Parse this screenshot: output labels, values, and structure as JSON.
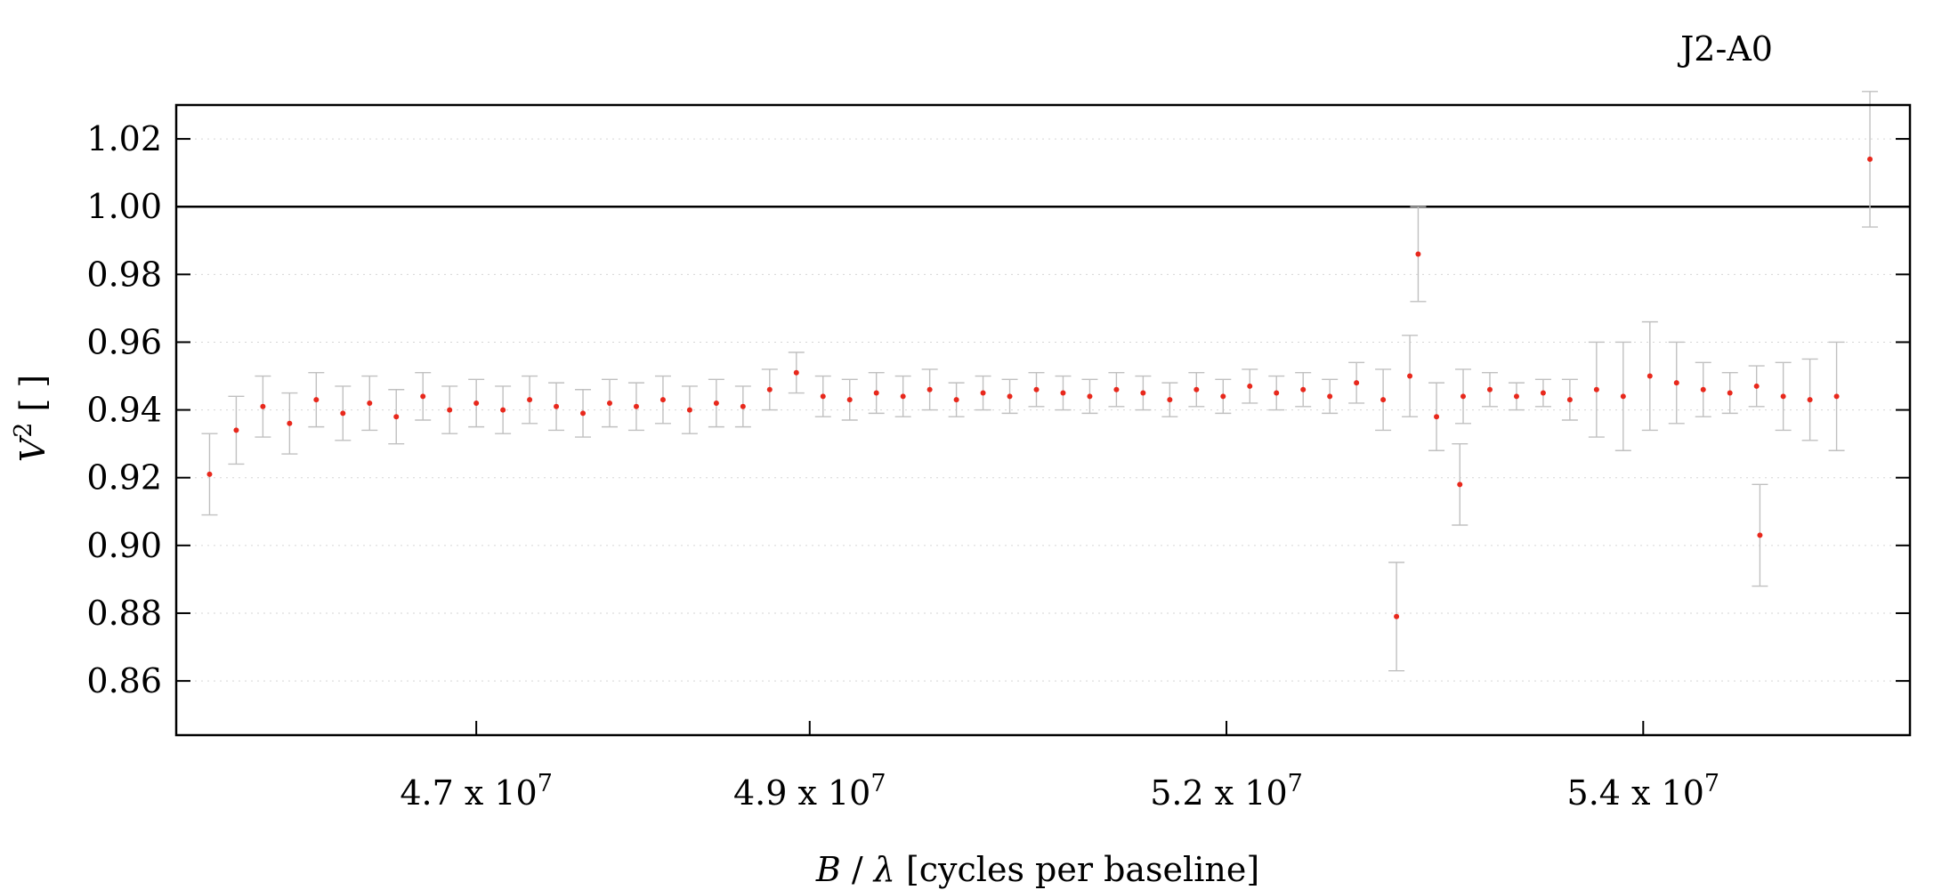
{
  "chart_data": {
    "type": "scatter",
    "title": "J2-A0",
    "xlabel": "B / λ [cycles per baseline]",
    "ylabel": "V² [ ]",
    "xlim": [
      45200000,
      55600000
    ],
    "ylim": [
      0.844,
      1.03
    ],
    "x_ticks": [
      {
        "value": 47000000,
        "mantissa": "4.7",
        "times": " x 10",
        "exponent": "7"
      },
      {
        "value": 49000000,
        "mantissa": "4.9",
        "times": " x 10",
        "exponent": "7"
      },
      {
        "value": 51500000,
        "mantissa": "5.2",
        "times": " x 10",
        "exponent": "7"
      },
      {
        "value": 54000000,
        "mantissa": "5.4",
        "times": " x 10",
        "exponent": "7"
      }
    ],
    "y_ticks": [
      "1.02",
      "1.00",
      "0.98",
      "0.96",
      "0.94",
      "0.92",
      "0.90",
      "0.88",
      "0.86"
    ],
    "reference_line": 1.0,
    "grid": true,
    "series": [
      {
        "marker_color": "#e8281c",
        "errorbar_color": "#c0c0c0",
        "x": [
          45400000,
          45560000,
          45720000,
          45880000,
          46040000,
          46200000,
          46360000,
          46520000,
          46680000,
          46840000,
          47000000,
          47160000,
          47320000,
          47480000,
          47640000,
          47800000,
          47960000,
          48120000,
          48280000,
          48440000,
          48600000,
          48760000,
          48920000,
          49080000,
          49240000,
          49400000,
          49560000,
          49720000,
          49880000,
          50040000,
          50200000,
          50360000,
          50520000,
          50680000,
          50840000,
          51000000,
          51160000,
          51320000,
          51480000,
          51640000,
          51800000,
          51960000,
          52120000,
          52280000,
          52440000,
          52600000,
          52760000,
          52920000,
          53080000,
          53240000,
          53400000,
          53560000,
          53720000,
          53880000,
          54040000,
          54200000,
          54360000,
          54520000,
          54680000,
          54840000,
          55000000,
          55160000,
          55360000,
          52520000,
          52650000,
          52900000,
          54700000
        ],
        "y": [
          0.921,
          0.934,
          0.941,
          0.936,
          0.943,
          0.939,
          0.942,
          0.938,
          0.944,
          0.94,
          0.942,
          0.94,
          0.943,
          0.941,
          0.939,
          0.942,
          0.941,
          0.943,
          0.94,
          0.942,
          0.941,
          0.946,
          0.951,
          0.944,
          0.943,
          0.945,
          0.944,
          0.946,
          0.943,
          0.945,
          0.944,
          0.946,
          0.945,
          0.944,
          0.946,
          0.945,
          0.943,
          0.946,
          0.944,
          0.947,
          0.945,
          0.946,
          0.944,
          0.948,
          0.943,
          0.95,
          0.938,
          0.944,
          0.946,
          0.944,
          0.945,
          0.943,
          0.946,
          0.944,
          0.95,
          0.948,
          0.946,
          0.945,
          0.947,
          0.944,
          0.943,
          0.944,
          1.014,
          0.879,
          0.986,
          0.918,
          0.903
        ],
        "err": [
          0.012,
          0.01,
          0.009,
          0.009,
          0.008,
          0.008,
          0.008,
          0.008,
          0.007,
          0.007,
          0.007,
          0.007,
          0.007,
          0.007,
          0.007,
          0.007,
          0.007,
          0.007,
          0.007,
          0.007,
          0.006,
          0.006,
          0.006,
          0.006,
          0.006,
          0.006,
          0.006,
          0.006,
          0.005,
          0.005,
          0.005,
          0.005,
          0.005,
          0.005,
          0.005,
          0.005,
          0.005,
          0.005,
          0.005,
          0.005,
          0.005,
          0.005,
          0.005,
          0.006,
          0.009,
          0.012,
          0.01,
          0.008,
          0.005,
          0.004,
          0.004,
          0.006,
          0.014,
          0.016,
          0.016,
          0.012,
          0.008,
          0.006,
          0.006,
          0.01,
          0.012,
          0.016,
          0.02,
          0.016,
          0.014,
          0.012,
          0.015
        ]
      }
    ]
  }
}
